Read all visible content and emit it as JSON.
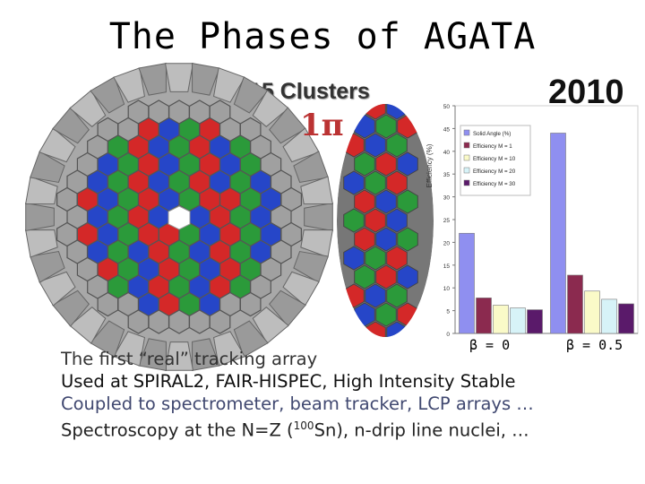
{
  "slide": {
    "title": "The Phases of AGATA",
    "subtitle": "15 Clusters",
    "year": "2010",
    "coverage": "1π",
    "beta_labels": [
      "β = 0",
      "β = 0.5"
    ],
    "lines": [
      "The first “real” tracking array",
      "Used at SPIRAL2, FAIR-HISPEC, High Intensity Stable",
      "Coupled to spectrometer, beam tracker, LCP arrays …",
      "Spectroscopy at the N=Z (100Sn), n-drip line nuclei, …"
    ],
    "line4_parts": {
      "before": "Spectroscopy at the N=Z (",
      "sup": "100",
      "after": "Sn), n-drip line nuclei, …"
    }
  },
  "chart_data": {
    "type": "bar",
    "ylabel": "Efficiency (%)",
    "ylim": [
      0,
      50
    ],
    "yticks": [
      0,
      5,
      10,
      15,
      20,
      25,
      30,
      35,
      40,
      45,
      50
    ],
    "categories": [
      "β = 0",
      "β = 0.5"
    ],
    "legend_position": "top-left",
    "series": [
      {
        "name": "Solid Angle (%)",
        "color": "#8f8ff0",
        "values": [
          22,
          44
        ]
      },
      {
        "name": "Efficiency M = 1",
        "color": "#8b2a4f",
        "values": [
          7.8,
          12.8
        ]
      },
      {
        "name": "Efficiency M = 10",
        "color": "#fafac8",
        "values": [
          6.2,
          9.3
        ]
      },
      {
        "name": "Efficiency M = 20",
        "color": "#d7f3f8",
        "values": [
          5.6,
          7.5
        ]
      },
      {
        "name": "Efficiency M = 30",
        "color": "#5a1a6a",
        "values": [
          5.2,
          6.5
        ]
      }
    ]
  }
}
